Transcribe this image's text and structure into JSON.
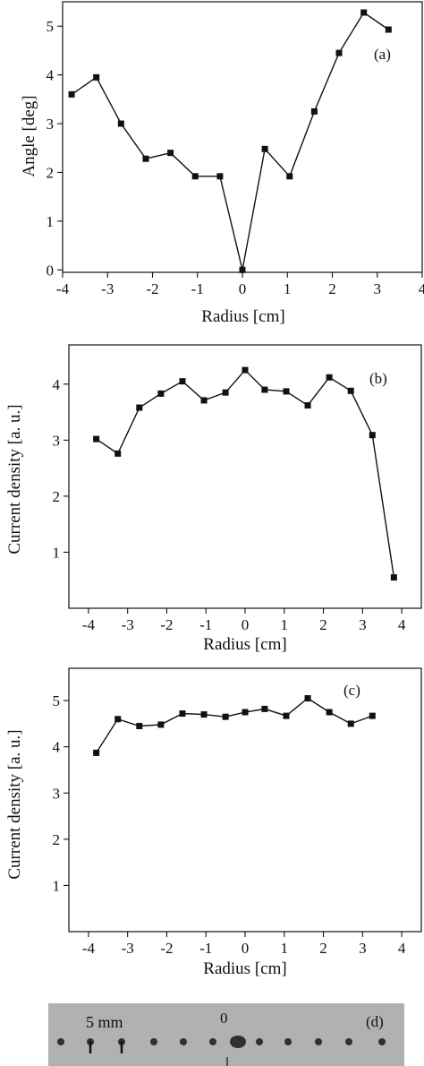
{
  "chart_data": [
    {
      "panel_label": "(a)",
      "type": "line",
      "title": "",
      "xlabel": "Radius [cm]",
      "ylabel": "Angle [deg]",
      "xlim": [
        -4,
        4
      ],
      "ylim": [
        -0.05,
        5.5
      ],
      "xticks": [
        -4,
        -3,
        -2,
        -1,
        0,
        1,
        2,
        3,
        4
      ],
      "yticks": [
        0,
        1,
        2,
        3,
        4,
        5
      ],
      "grid": false,
      "series": [
        {
          "x": [
            -3.8,
            -3.25,
            -2.7,
            -2.15,
            -1.6,
            -1.05,
            -0.5,
            0,
            0.5,
            1.05,
            1.6,
            2.15,
            2.7,
            3.25
          ],
          "y": [
            3.6,
            3.95,
            3.0,
            2.28,
            2.4,
            1.92,
            1.92,
            0.0,
            2.48,
            1.92,
            3.25,
            4.45,
            5.28,
            4.93
          ]
        }
      ]
    },
    {
      "panel_label": "(b)",
      "type": "line",
      "title": "",
      "xlabel": "Radius [cm]",
      "ylabel": "Current density [a. u.]",
      "xlim": [
        -4.5,
        4.5
      ],
      "ylim": [
        0,
        4.7
      ],
      "xticks": [
        -4,
        -3,
        -2,
        -1,
        0,
        1,
        2,
        3,
        4
      ],
      "yticks": [
        1,
        2,
        3,
        4
      ],
      "grid": false,
      "series": [
        {
          "x": [
            -3.8,
            -3.25,
            -2.7,
            -2.15,
            -1.6,
            -1.05,
            -0.5,
            0,
            0.5,
            1.05,
            1.6,
            2.15,
            2.7,
            3.25,
            3.8
          ],
          "y": [
            3.02,
            2.76,
            3.58,
            3.83,
            4.05,
            3.71,
            3.85,
            4.25,
            3.9,
            3.87,
            3.62,
            4.12,
            3.88,
            3.09,
            0.55
          ]
        }
      ]
    },
    {
      "panel_label": "(c)",
      "type": "line",
      "title": "",
      "xlabel": "Radius [cm]",
      "ylabel": "Current density [a. u.]",
      "xlim": [
        -4.5,
        4.5
      ],
      "ylim": [
        0,
        5.7
      ],
      "xticks": [
        -4,
        -3,
        -2,
        -1,
        0,
        1,
        2,
        3,
        4
      ],
      "yticks": [
        1,
        2,
        3,
        4,
        5
      ],
      "grid": false,
      "series": [
        {
          "x": [
            -3.8,
            -3.25,
            -2.7,
            -2.15,
            -1.6,
            -1.05,
            -0.5,
            0,
            0.5,
            1.05,
            1.6,
            2.15,
            2.7,
            3.25
          ],
          "y": [
            3.87,
            4.6,
            4.45,
            4.48,
            4.72,
            4.7,
            4.65,
            4.75,
            4.82,
            4.67,
            5.05,
            4.75,
            4.5,
            4.67
          ]
        }
      ]
    }
  ],
  "photo": {
    "panel_label": "(d)",
    "scale_label": "5 mm",
    "center_label": "0"
  }
}
